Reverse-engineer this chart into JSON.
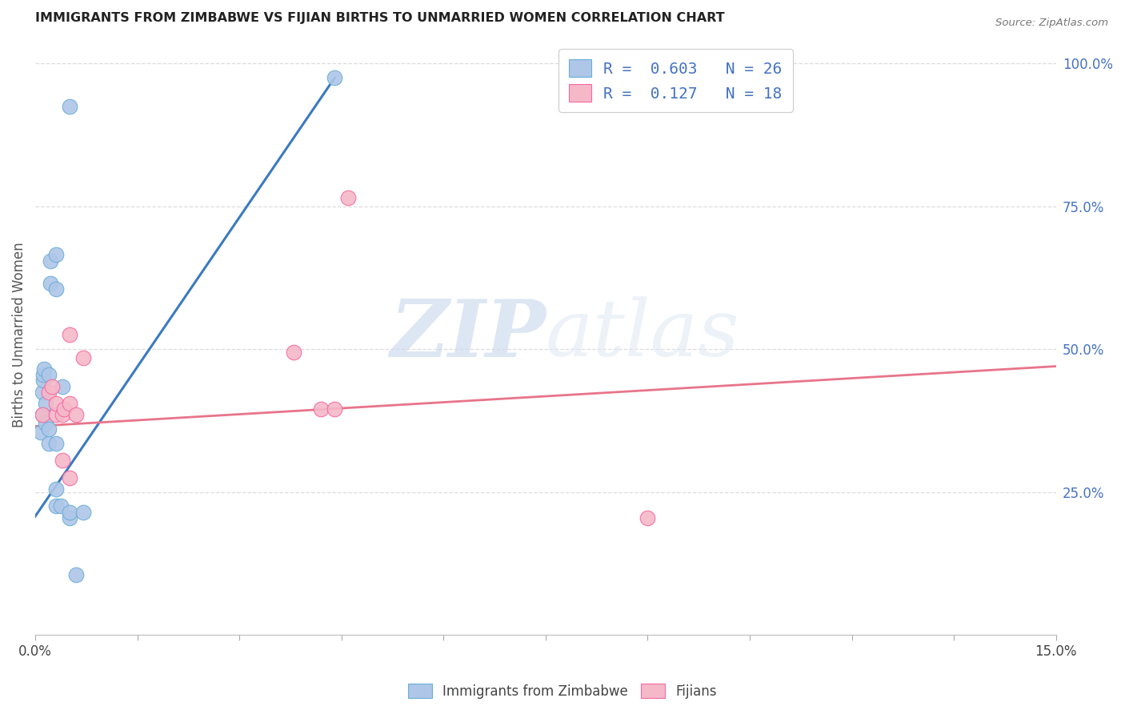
{
  "title": "IMMIGRANTS FROM ZIMBABWE VS FIJIAN BIRTHS TO UNMARRIED WOMEN CORRELATION CHART",
  "source": "Source: ZipAtlas.com",
  "ylabel": "Births to Unmarried Women",
  "xlim": [
    0.0,
    0.15
  ],
  "ylim": [
    0.0,
    1.05
  ],
  "xticks": [
    0.0,
    0.015,
    0.03,
    0.045,
    0.06,
    0.075,
    0.09,
    0.105,
    0.12,
    0.135,
    0.15
  ],
  "xticklabels": [
    "0.0%",
    "",
    "",
    "",
    "",
    "",
    "",
    "",
    "",
    "",
    "15.0%"
  ],
  "yticks_right": [
    0.25,
    0.5,
    0.75,
    1.0
  ],
  "ytick_labels_right": [
    "25.0%",
    "50.0%",
    "75.0%",
    "100.0%"
  ],
  "legend_line1": "R =  0.603   N = 26",
  "legend_line2": "R =  0.127   N = 18",
  "legend_label1": "Immigrants from Zimbabwe",
  "legend_label2": "Fijians",
  "watermark_zip": "ZIP",
  "watermark_atlas": "atlas",
  "blue_color": "#aec6e8",
  "pink_color": "#f4b8c8",
  "blue_edge_color": "#6baed6",
  "pink_edge_color": "#f768a1",
  "blue_line_color": "#3a7abf",
  "pink_line_color": "#e8748a",
  "legend_text_color": "#4472c4",
  "blue_scatter": [
    [
      0.0008,
      0.355
    ],
    [
      0.001,
      0.385
    ],
    [
      0.001,
      0.425
    ],
    [
      0.0012,
      0.445
    ],
    [
      0.0012,
      0.455
    ],
    [
      0.0013,
      0.465
    ],
    [
      0.0015,
      0.37
    ],
    [
      0.0015,
      0.405
    ],
    [
      0.002,
      0.335
    ],
    [
      0.002,
      0.36
    ],
    [
      0.002,
      0.455
    ],
    [
      0.0022,
      0.615
    ],
    [
      0.0022,
      0.655
    ],
    [
      0.003,
      0.225
    ],
    [
      0.003,
      0.255
    ],
    [
      0.003,
      0.335
    ],
    [
      0.003,
      0.605
    ],
    [
      0.003,
      0.665
    ],
    [
      0.0038,
      0.225
    ],
    [
      0.004,
      0.435
    ],
    [
      0.005,
      0.205
    ],
    [
      0.005,
      0.215
    ],
    [
      0.005,
      0.925
    ],
    [
      0.006,
      0.105
    ],
    [
      0.007,
      0.215
    ],
    [
      0.044,
      0.975
    ]
  ],
  "pink_scatter": [
    [
      0.001,
      0.385
    ],
    [
      0.002,
      0.425
    ],
    [
      0.0025,
      0.435
    ],
    [
      0.003,
      0.385
    ],
    [
      0.003,
      0.405
    ],
    [
      0.004,
      0.305
    ],
    [
      0.004,
      0.385
    ],
    [
      0.0042,
      0.395
    ],
    [
      0.005,
      0.275
    ],
    [
      0.005,
      0.405
    ],
    [
      0.005,
      0.525
    ],
    [
      0.006,
      0.385
    ],
    [
      0.007,
      0.485
    ],
    [
      0.038,
      0.495
    ],
    [
      0.042,
      0.395
    ],
    [
      0.044,
      0.395
    ],
    [
      0.046,
      0.765
    ],
    [
      0.09,
      0.205
    ]
  ],
  "blue_line_x": [
    -0.001,
    0.044
  ],
  "blue_line_y": [
    0.19,
    0.975
  ],
  "pink_line_x": [
    0.0,
    0.15
  ],
  "pink_line_y": [
    0.365,
    0.47
  ]
}
